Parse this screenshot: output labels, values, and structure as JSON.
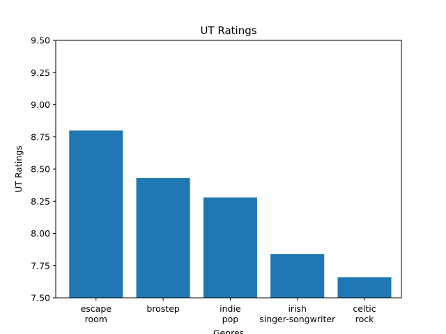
{
  "chart_data": {
    "type": "bar",
    "title": "UT Ratings",
    "xlabel": "Genres",
    "ylabel": "UT Ratings",
    "categories": [
      [
        "escape",
        "room"
      ],
      [
        "brostep"
      ],
      [
        "indie",
        "pop"
      ],
      [
        "irish",
        "singer-songwriter"
      ],
      [
        "celtic",
        "rock"
      ]
    ],
    "values": [
      8.8,
      8.43,
      8.28,
      7.84,
      7.66
    ],
    "ylim": [
      7.5,
      9.5
    ],
    "yticks": [
      "7.50",
      "7.75",
      "8.00",
      "8.25",
      "8.50",
      "8.75",
      "9.00",
      "9.25",
      "9.50"
    ],
    "grid": false,
    "legend": "none",
    "bar_color": "#1f77b4"
  }
}
